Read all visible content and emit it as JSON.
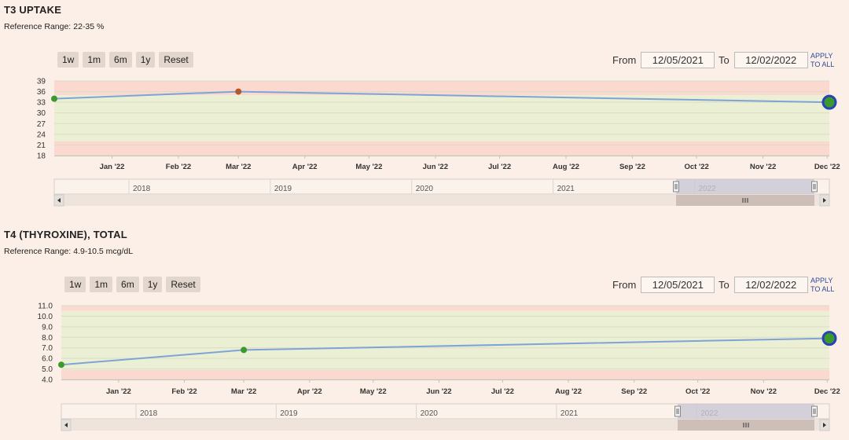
{
  "panels": [
    {
      "id": "t3",
      "title": "T3 UPTAKE",
      "ref_label": "Reference Range:",
      "ref_value": "22-35 %",
      "range_buttons": [
        "1w",
        "1m",
        "6m",
        "1y",
        "Reset"
      ],
      "from_label": "From",
      "from_value": "12/05/2021",
      "to_label": "To",
      "to_value": "12/02/2022",
      "apply_line1": "APPLY",
      "apply_line2": "TO ALL"
    },
    {
      "id": "t4",
      "title": "T4 (THYROXINE), TOTAL",
      "ref_label": "Reference Range:",
      "ref_value": "4.9-10.5 mcg/dL",
      "range_buttons": [
        "1w",
        "1m",
        "6m",
        "1y",
        "Reset"
      ],
      "from_label": "From",
      "from_value": "12/05/2021",
      "to_label": "To",
      "to_value": "12/02/2022",
      "apply_line1": "APPLY",
      "apply_line2": "TO ALL"
    }
  ],
  "colors": {
    "background": "#fcefe7",
    "normal_band": "#ebf0d4",
    "abnormal_band": "#fbd9d0",
    "line": "#7fa3d6",
    "point_normal": "#3c9a2c",
    "point_abnormal": "#b4572b",
    "latest_point_ring": "#2944b4"
  },
  "chart_data": [
    {
      "type": "line",
      "title": "T3 UPTAKE",
      "ylim": [
        18,
        39
      ],
      "yticks": [
        18,
        21,
        24,
        27,
        30,
        33,
        36,
        39
      ],
      "ref_range": [
        22,
        35
      ],
      "xlim": [
        "2021-12-05",
        "2022-12-02"
      ],
      "x_tick_labels": [
        "Jan '22",
        "Feb '22",
        "Mar '22",
        "Apr '22",
        "May '22",
        "Jun '22",
        "Jul '22",
        "Aug '22",
        "Sep '22",
        "Oct '22",
        "Nov '22",
        "Dec '22"
      ],
      "x_tick_dates": [
        "2022-01-01",
        "2022-02-01",
        "2022-03-01",
        "2022-04-01",
        "2022-05-01",
        "2022-06-01",
        "2022-07-01",
        "2022-08-01",
        "2022-09-01",
        "2022-10-01",
        "2022-11-01",
        "2022-12-01"
      ],
      "points": [
        {
          "x": "2021-12-05",
          "y": 34,
          "status": "normal"
        },
        {
          "x": "2022-03-01",
          "y": 36,
          "status": "abnormal"
        },
        {
          "x": "2022-12-02",
          "y": 33,
          "status": "latest"
        }
      ],
      "navigator_labels": [
        "2018",
        "2019",
        "2020",
        "2021",
        "2022"
      ],
      "grid": true
    },
    {
      "type": "line",
      "title": "T4 (THYROXINE), TOTAL",
      "ylim": [
        4.0,
        11.0
      ],
      "yticks": [
        "4.0",
        "5.0",
        "6.0",
        "7.0",
        "8.0",
        "9.0",
        "10.0",
        "11.0"
      ],
      "ref_range": [
        4.9,
        10.5
      ],
      "xlim": [
        "2021-12-05",
        "2022-12-02"
      ],
      "x_tick_labels": [
        "Jan '22",
        "Feb '22",
        "Mar '22",
        "Apr '22",
        "May '22",
        "Jun '22",
        "Jul '22",
        "Aug '22",
        "Sep '22",
        "Oct '22",
        "Nov '22",
        "Dec '22"
      ],
      "x_tick_dates": [
        "2022-01-01",
        "2022-02-01",
        "2022-03-01",
        "2022-04-01",
        "2022-05-01",
        "2022-06-01",
        "2022-07-01",
        "2022-08-01",
        "2022-09-01",
        "2022-10-01",
        "2022-11-01",
        "2022-12-01"
      ],
      "points": [
        {
          "x": "2021-12-05",
          "y": 5.4,
          "status": "normal"
        },
        {
          "x": "2022-03-01",
          "y": 6.8,
          "status": "normal"
        },
        {
          "x": "2022-12-02",
          "y": 7.9,
          "status": "latest"
        }
      ],
      "navigator_labels": [
        "2018",
        "2019",
        "2020",
        "2021",
        "2022"
      ],
      "grid": true
    }
  ]
}
